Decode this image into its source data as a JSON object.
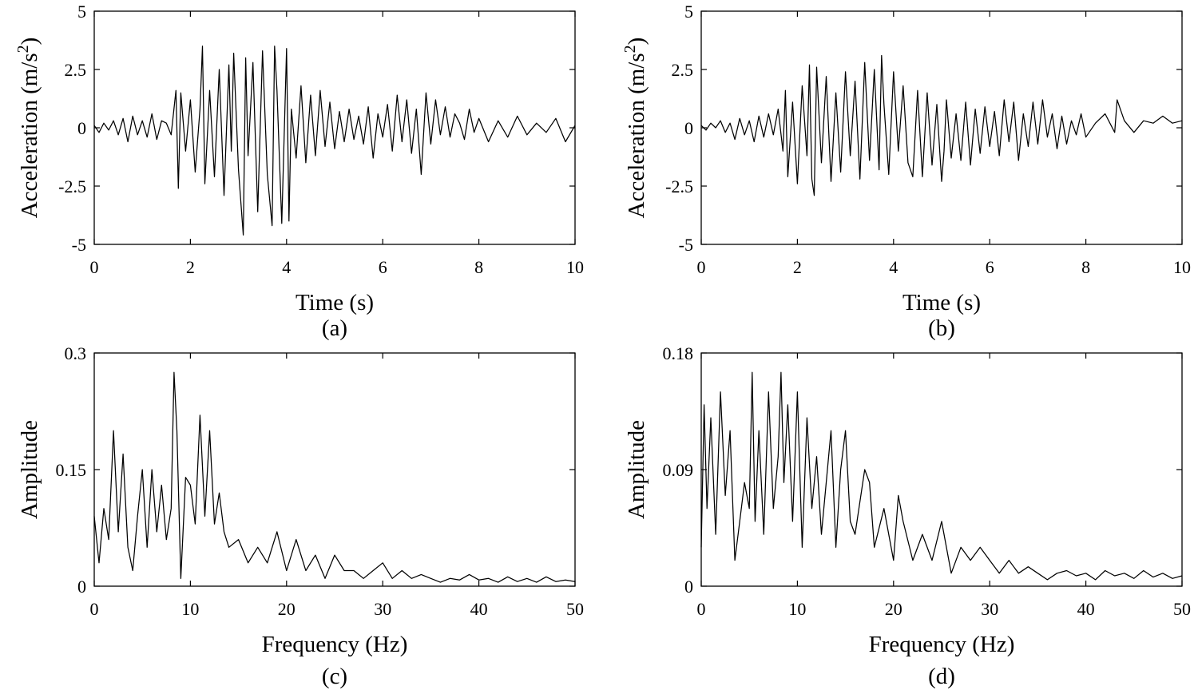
{
  "chart_data": [
    {
      "id": "a",
      "type": "line",
      "caption": "(a)",
      "xlabel": "Time (s)",
      "ylabel": "Acceleration (m/s2)",
      "ylabel_base": "Acceleration (m/s",
      "ylabel_sup": "2",
      "ylabel_end": ")",
      "xlim": [
        0,
        10
      ],
      "ylim": [
        -5,
        5
      ],
      "xticks": [
        0,
        2,
        4,
        6,
        8,
        10
      ],
      "xtick_labels": [
        "0",
        "2",
        "4",
        "6",
        "8",
        "10"
      ],
      "yticks": [
        -5,
        -2.5,
        0,
        2.5,
        5
      ],
      "ytick_labels": [
        "-5",
        "-2.5",
        "0",
        "2.5",
        "5"
      ],
      "series": [
        {
          "name": "acceleration",
          "x": [
            0,
            0.1,
            0.2,
            0.3,
            0.4,
            0.5,
            0.6,
            0.7,
            0.8,
            0.9,
            1.0,
            1.1,
            1.2,
            1.3,
            1.4,
            1.5,
            1.6,
            1.7,
            1.75,
            1.8,
            1.9,
            2.0,
            2.1,
            2.2,
            2.25,
            2.3,
            2.4,
            2.5,
            2.6,
            2.7,
            2.8,
            2.85,
            2.9,
            3.0,
            3.1,
            3.15,
            3.2,
            3.3,
            3.4,
            3.5,
            3.6,
            3.7,
            3.75,
            3.8,
            3.9,
            4.0,
            4.05,
            4.1,
            4.2,
            4.3,
            4.4,
            4.5,
            4.6,
            4.7,
            4.8,
            4.9,
            5.0,
            5.1,
            5.2,
            5.3,
            5.4,
            5.5,
            5.6,
            5.7,
            5.8,
            5.9,
            6.0,
            6.1,
            6.2,
            6.3,
            6.4,
            6.5,
            6.6,
            6.7,
            6.8,
            6.9,
            7.0,
            7.1,
            7.2,
            7.3,
            7.4,
            7.5,
            7.6,
            7.7,
            7.8,
            7.9,
            8.0,
            8.2,
            8.4,
            8.6,
            8.8,
            9.0,
            9.2,
            9.4,
            9.6,
            9.8,
            10.0
          ],
          "y": [
            0.1,
            -0.2,
            0.2,
            -0.1,
            0.3,
            -0.3,
            0.4,
            -0.6,
            0.5,
            -0.3,
            0.3,
            -0.4,
            0.6,
            -0.5,
            0.3,
            0.2,
            -0.3,
            1.6,
            -2.6,
            1.5,
            -1.0,
            1.2,
            -1.9,
            0.8,
            3.5,
            -2.4,
            1.6,
            -2.1,
            2.5,
            -2.9,
            2.7,
            -1.0,
            3.2,
            -1.8,
            -4.6,
            3.0,
            -1.2,
            2.8,
            -3.6,
            3.3,
            -2.0,
            -4.2,
            3.5,
            1.6,
            -4.1,
            3.4,
            -4.0,
            0.8,
            -1.3,
            1.8,
            -1.5,
            1.4,
            -1.2,
            1.6,
            -0.8,
            1.1,
            -0.9,
            0.7,
            -0.6,
            0.8,
            -0.5,
            0.5,
            -0.7,
            0.9,
            -1.3,
            0.6,
            -0.4,
            1.0,
            -1.0,
            1.4,
            -0.6,
            1.2,
            -1.1,
            0.8,
            -2.0,
            1.5,
            -0.7,
            1.2,
            -0.3,
            0.9,
            -0.4,
            0.6,
            0.2,
            -0.5,
            0.8,
            -0.2,
            0.4,
            -0.6,
            0.3,
            -0.4,
            0.5,
            -0.3,
            0.2,
            -0.2,
            0.4,
            -0.6,
            0.1
          ]
        }
      ]
    },
    {
      "id": "b",
      "type": "line",
      "caption": "(b)",
      "xlabel": "Time (s)",
      "ylabel": "Acceleration (m/s2)",
      "ylabel_base": "Acceleration (m/s",
      "ylabel_sup": "2",
      "ylabel_end": ")",
      "xlim": [
        0,
        10
      ],
      "ylim": [
        -5,
        5
      ],
      "xticks": [
        0,
        2,
        4,
        6,
        8,
        10
      ],
      "xtick_labels": [
        "0",
        "2",
        "4",
        "6",
        "8",
        "10"
      ],
      "yticks": [
        -5,
        -2.5,
        0,
        2.5,
        5
      ],
      "ytick_labels": [
        "-5",
        "-2.5",
        "0",
        "2.5",
        "5"
      ],
      "series": [
        {
          "name": "acceleration",
          "x": [
            0,
            0.1,
            0.2,
            0.3,
            0.4,
            0.5,
            0.6,
            0.7,
            0.8,
            0.9,
            1.0,
            1.1,
            1.2,
            1.3,
            1.4,
            1.5,
            1.6,
            1.7,
            1.75,
            1.8,
            1.9,
            2.0,
            2.1,
            2.2,
            2.25,
            2.3,
            2.35,
            2.4,
            2.5,
            2.6,
            2.7,
            2.8,
            2.9,
            3.0,
            3.1,
            3.2,
            3.3,
            3.4,
            3.5,
            3.6,
            3.7,
            3.75,
            3.8,
            3.9,
            4.0,
            4.1,
            4.2,
            4.3,
            4.4,
            4.5,
            4.6,
            4.7,
            4.8,
            4.9,
            5.0,
            5.05,
            5.1,
            5.2,
            5.3,
            5.4,
            5.5,
            5.6,
            5.7,
            5.8,
            5.9,
            6.0,
            6.1,
            6.2,
            6.3,
            6.4,
            6.5,
            6.6,
            6.7,
            6.8,
            6.9,
            7.0,
            7.1,
            7.2,
            7.3,
            7.4,
            7.5,
            7.6,
            7.7,
            7.8,
            7.9,
            8.0,
            8.2,
            8.4,
            8.6,
            8.65,
            8.8,
            9.0,
            9.2,
            9.4,
            9.6,
            9.8,
            10.0
          ],
          "y": [
            0.1,
            -0.1,
            0.2,
            0,
            0.3,
            -0.2,
            0.2,
            -0.5,
            0.4,
            -0.3,
            0.3,
            -0.6,
            0.5,
            -0.4,
            0.6,
            -0.3,
            0.8,
            -1.0,
            1.6,
            -2.1,
            1.1,
            -2.4,
            1.8,
            -1.2,
            2.7,
            -2.2,
            -2.9,
            2.6,
            -1.5,
            2.2,
            -2.3,
            1.5,
            -1.9,
            2.4,
            -1.2,
            2.0,
            -2.2,
            2.8,
            -1.4,
            2.5,
            -1.8,
            3.1,
            1.0,
            -2.0,
            2.4,
            -1.0,
            1.8,
            -1.5,
            -2.1,
            1.6,
            -2.1,
            1.5,
            -1.6,
            1.0,
            -2.3,
            -1.0,
            1.2,
            -1.3,
            0.6,
            -1.4,
            1.1,
            -1.6,
            0.8,
            -1.1,
            0.9,
            -0.8,
            0.7,
            -1.2,
            1.2,
            -0.6,
            1.1,
            -1.4,
            0.6,
            -0.8,
            1.1,
            -0.7,
            1.2,
            -0.4,
            0.6,
            -0.9,
            0.5,
            -0.7,
            0.3,
            -0.3,
            0.6,
            -0.4,
            0.2,
            0.6,
            -0.2,
            1.2,
            0.3,
            -0.2,
            0.3,
            0.2,
            0.5,
            0.2,
            0.3
          ]
        }
      ]
    },
    {
      "id": "c",
      "type": "line",
      "caption": "(c)",
      "xlabel": "Frequency (Hz)",
      "ylabel": "Amplitude",
      "xlim": [
        0,
        50
      ],
      "ylim": [
        0,
        0.3
      ],
      "xticks": [
        0,
        10,
        20,
        30,
        40,
        50
      ],
      "xtick_labels": [
        "0",
        "10",
        "20",
        "30",
        "40",
        "50"
      ],
      "yticks": [
        0,
        0.15,
        0.3
      ],
      "ytick_labels": [
        "0",
        "0.15",
        "0.3"
      ],
      "series": [
        {
          "name": "amplitude spectrum",
          "x": [
            0,
            0.5,
            1,
            1.5,
            2,
            2.5,
            3,
            3.5,
            4,
            4.5,
            5,
            5.5,
            6,
            6.5,
            7,
            7.5,
            8,
            8.3,
            8.6,
            9,
            9.5,
            10,
            10.5,
            11,
            11.5,
            12,
            12.5,
            13,
            13.5,
            14,
            15,
            16,
            17,
            18,
            19,
            20,
            21,
            22,
            23,
            24,
            25,
            26,
            27,
            28,
            29,
            30,
            31,
            32,
            33,
            34,
            35,
            36,
            37,
            38,
            39,
            40,
            41,
            42,
            43,
            44,
            45,
            46,
            47,
            48,
            49,
            50
          ],
          "y": [
            0.09,
            0.03,
            0.1,
            0.06,
            0.2,
            0.07,
            0.17,
            0.05,
            0.02,
            0.09,
            0.15,
            0.05,
            0.15,
            0.07,
            0.13,
            0.06,
            0.1,
            0.275,
            0.2,
            0.01,
            0.14,
            0.13,
            0.08,
            0.22,
            0.09,
            0.2,
            0.08,
            0.12,
            0.07,
            0.05,
            0.06,
            0.03,
            0.05,
            0.03,
            0.07,
            0.02,
            0.06,
            0.02,
            0.04,
            0.01,
            0.04,
            0.02,
            0.02,
            0.01,
            0.02,
            0.03,
            0.01,
            0.02,
            0.01,
            0.015,
            0.01,
            0.005,
            0.01,
            0.008,
            0.015,
            0.008,
            0.01,
            0.005,
            0.012,
            0.006,
            0.01,
            0.005,
            0.012,
            0.006,
            0.008,
            0.006
          ]
        }
      ]
    },
    {
      "id": "d",
      "type": "line",
      "caption": "(d)",
      "xlabel": "Frequency (Hz)",
      "ylabel": "Amplitude",
      "xlim": [
        0,
        50
      ],
      "ylim": [
        0,
        0.18
      ],
      "xticks": [
        0,
        10,
        20,
        30,
        40,
        50
      ],
      "xtick_labels": [
        "0",
        "10",
        "20",
        "30",
        "40",
        "50"
      ],
      "yticks": [
        0,
        0.09,
        0.18
      ],
      "ytick_labels": [
        "0",
        "0.09",
        "0.18"
      ],
      "series": [
        {
          "name": "amplitude spectrum",
          "x": [
            0,
            0.3,
            0.6,
            1,
            1.5,
            2,
            2.5,
            3,
            3.5,
            4,
            4.5,
            5,
            5.3,
            5.6,
            6,
            6.5,
            7,
            7.5,
            8,
            8.3,
            8.6,
            9,
            9.5,
            10,
            10.5,
            11,
            11.5,
            12,
            12.5,
            13,
            13.5,
            14,
            14.5,
            15,
            15.5,
            16,
            17,
            17.5,
            18,
            19,
            20,
            20.5,
            21,
            22,
            23,
            24,
            25,
            26,
            27,
            28,
            29,
            30,
            31,
            32,
            33,
            34,
            35,
            36,
            37,
            38,
            39,
            40,
            41,
            42,
            43,
            44,
            45,
            46,
            47,
            48,
            49,
            50
          ],
          "y": [
            0.03,
            0.14,
            0.06,
            0.13,
            0.04,
            0.15,
            0.07,
            0.12,
            0.02,
            0.05,
            0.08,
            0.06,
            0.165,
            0.05,
            0.12,
            0.04,
            0.15,
            0.06,
            0.1,
            0.165,
            0.08,
            0.14,
            0.05,
            0.15,
            0.03,
            0.13,
            0.06,
            0.1,
            0.04,
            0.08,
            0.12,
            0.03,
            0.09,
            0.12,
            0.05,
            0.04,
            0.09,
            0.08,
            0.03,
            0.06,
            0.02,
            0.07,
            0.05,
            0.02,
            0.04,
            0.02,
            0.05,
            0.01,
            0.03,
            0.02,
            0.03,
            0.02,
            0.01,
            0.02,
            0.01,
            0.015,
            0.01,
            0.005,
            0.01,
            0.012,
            0.008,
            0.01,
            0.005,
            0.012,
            0.008,
            0.01,
            0.006,
            0.012,
            0.007,
            0.01,
            0.006,
            0.008
          ]
        }
      ]
    }
  ]
}
